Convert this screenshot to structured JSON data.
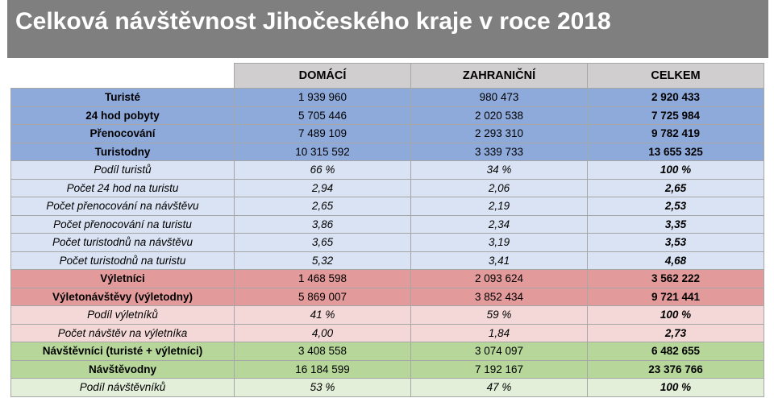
{
  "header": {
    "title": "Celková návštěvnost Jihočeského kraje v roce 2018"
  },
  "columns": [
    "DOMÁCÍ",
    "ZAHRANIČNÍ",
    "CELKEM"
  ],
  "rows": [
    {
      "label": "Turisté",
      "values": [
        "1 939 960",
        "980 473",
        "2 920 433"
      ]
    },
    {
      "label": "24 hod pobyty",
      "values": [
        "5 705 446",
        "2 020 538",
        "7 725 984"
      ]
    },
    {
      "label": "Přenocování",
      "values": [
        "7 489 109",
        "2 293 310",
        "9 782 419"
      ]
    },
    {
      "label": "Turistodny",
      "values": [
        "10 315 592",
        "3 339 733",
        "13 655 325"
      ]
    },
    {
      "label": "Podíl turistů",
      "values": [
        "66 %",
        "34 %",
        "100 %"
      ]
    },
    {
      "label": "Počet 24 hod na turistu",
      "values": [
        "2,94",
        "2,06",
        "2,65"
      ]
    },
    {
      "label": "Počet přenocování na návštěvu",
      "values": [
        "2,65",
        "2,19",
        "2,53"
      ]
    },
    {
      "label": "Počet přenocování na turistu",
      "values": [
        "3,86",
        "2,34",
        "3,35"
      ]
    },
    {
      "label": "Počet turistodnů na návštěvu",
      "values": [
        "3,65",
        "3,19",
        "3,53"
      ]
    },
    {
      "label": "Počet turistodnů na turistu",
      "values": [
        "5,32",
        "3,41",
        "4,68"
      ]
    },
    {
      "label": "Výletníci",
      "values": [
        "1 468 598",
        "2 093 624",
        "3 562 222"
      ]
    },
    {
      "label": "Výletonávštěvy (výletodny)",
      "values": [
        "5 869 007",
        "3 852 434",
        "9 721 441"
      ]
    },
    {
      "label": "Podíl výletníků",
      "values": [
        "41 %",
        "59 %",
        "100 %"
      ]
    },
    {
      "label": "Počet návštěv na výletníka",
      "values": [
        "4,00",
        "1,84",
        "2,73"
      ]
    },
    {
      "label": "Návštěvníci (turisté + výletníci)",
      "values": [
        "3 408 558",
        "3 074 097",
        "6 482 655"
      ]
    },
    {
      "label": "Návštěvodny",
      "values": [
        "16 184 599",
        "7 192 167",
        "23 376 766"
      ]
    },
    {
      "label": "Podíl návštěvníků",
      "values": [
        "53 %",
        "47 %",
        "100 %"
      ]
    }
  ],
  "colors": {
    "title_bar": "#7f7f7f",
    "header_fill": "#d0cece",
    "blue_main": "#8eaadb",
    "blue_light": "#dae3f3",
    "red_main": "#e39a9a",
    "red_light": "#f4d7d7",
    "green_main": "#b6d69a",
    "green_light": "#e3efd9"
  }
}
